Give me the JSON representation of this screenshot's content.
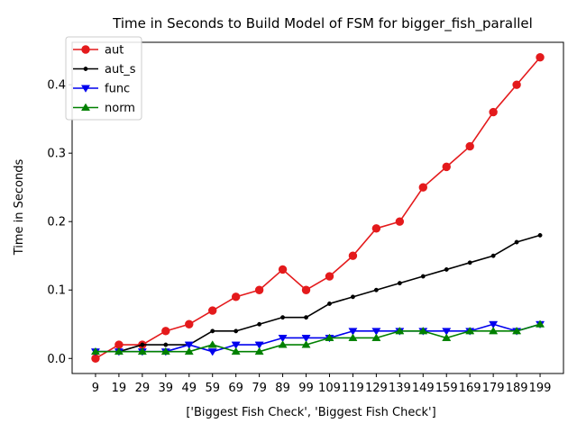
{
  "chart_data": {
    "type": "line",
    "title": "Time in Seconds to Build Model of FSM for bigger_fish_parallel",
    "xlabel": "['Biggest Fish Check', 'Biggest Fish Check']",
    "ylabel": "Time in Seconds",
    "x": [
      9,
      19,
      29,
      39,
      49,
      59,
      69,
      79,
      89,
      99,
      109,
      119,
      129,
      139,
      149,
      159,
      169,
      179,
      189,
      199
    ],
    "ylim": [
      -0.022,
      0.462
    ],
    "yticks": [
      0.0,
      0.1,
      0.2,
      0.3,
      0.4
    ],
    "ytick_labels": [
      "0.0",
      "0.1",
      "0.2",
      "0.3",
      "0.4"
    ],
    "grid": false,
    "legend_position": "upper-left",
    "series": [
      {
        "name": "aut",
        "color": "#e41a1c",
        "marker": "circle",
        "values": [
          0.0,
          0.02,
          0.02,
          0.04,
          0.05,
          0.07,
          0.09,
          0.1,
          0.13,
          0.1,
          0.12,
          0.15,
          0.19,
          0.2,
          0.25,
          0.28,
          0.31,
          0.36,
          0.4,
          0.44
        ]
      },
      {
        "name": "aut_s",
        "color": "#000000",
        "marker": "small-dot",
        "values": [
          0.01,
          0.01,
          0.02,
          0.02,
          0.02,
          0.04,
          0.04,
          0.05,
          0.06,
          0.06,
          0.08,
          0.09,
          0.1,
          0.11,
          0.12,
          0.13,
          0.14,
          0.15,
          0.17,
          0.18
        ]
      },
      {
        "name": "func",
        "color": "#0000ee",
        "marker": "triangle-down",
        "values": [
          0.01,
          0.01,
          0.01,
          0.01,
          0.02,
          0.01,
          0.02,
          0.02,
          0.03,
          0.03,
          0.03,
          0.04,
          0.04,
          0.04,
          0.04,
          0.04,
          0.04,
          0.05,
          0.04,
          0.05
        ]
      },
      {
        "name": "norm",
        "color": "#008000",
        "marker": "triangle-up",
        "values": [
          0.01,
          0.01,
          0.01,
          0.01,
          0.01,
          0.02,
          0.01,
          0.01,
          0.02,
          0.02,
          0.03,
          0.03,
          0.03,
          0.04,
          0.04,
          0.03,
          0.04,
          0.04,
          0.04,
          0.05
        ]
      }
    ]
  }
}
